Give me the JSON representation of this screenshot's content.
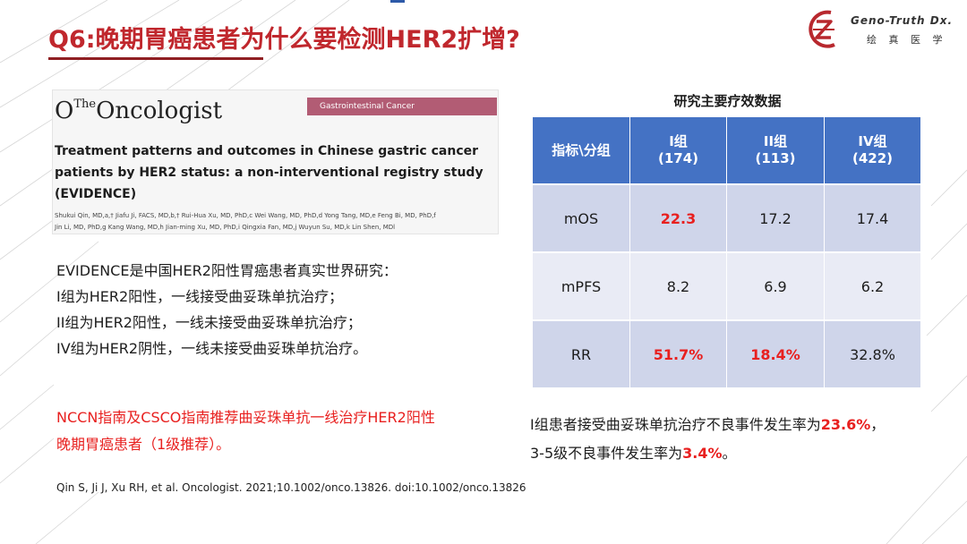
{
  "title": "Q6:晚期胃癌患者为什么要检测HER2扩增?",
  "logo": {
    "name_en": "Geno-Truth Dx.",
    "name_cn": "绘 真 医 学"
  },
  "paper": {
    "journal": "The Oncologist",
    "journal_prefix": "The",
    "journal_name": "Oncologist",
    "category": "Gastrointestinal Cancer",
    "title": "Treatment patterns and outcomes in Chinese gastric cancer patients by HER2 status: a non-interventional registry study (EVIDENCE)",
    "authors_line1": "Shukui Qin, MD,a,† Jiafu Ji, FACS, MD,b,† Rui-Hua Xu, MD, PhD,c Wei Wang, MD, PhD,d Yong Tang, MD,e Feng Bi, MD, PhD,f",
    "authors_line2": "Jin Li, MD, PhD,g Kang Wang, MD,h Jian-ming Xu, MD, PhD,i Qingxia Fan, MD,j Wuyun Su, MD,k Lin Shen, MDl"
  },
  "evidence": {
    "line1": "EVIDENCE是中国HER2阳性胃癌患者真实世界研究：",
    "line2": "I组为HER2阳性，一线接受曲妥珠单抗治疗；",
    "line3": "II组为HER2阳性，一线未接受曲妥珠单抗治疗；",
    "line4": "IV组为HER2阴性，一线未接受曲妥珠单抗治疗。"
  },
  "nccn": {
    "line1": "NCCN指南及CSCO指南推荐曲妥珠单抗一线治疗HER2阳性",
    "line2": "晚期胃癌患者（1级推荐）。"
  },
  "citation": "Qin S, Ji J, Xu RH, et al. Oncologist. 2021;10.1002/onco.13826. doi:10.1002/onco.13826",
  "table": {
    "title": "研究主要疗效数据",
    "header": {
      "corner": "指标\\分组",
      "g1_name": "I组",
      "g1_n": "(174)",
      "g2_name": "II组",
      "g2_n": "(113)",
      "g3_name": "IV组",
      "g3_n": "(422)"
    },
    "rows": [
      {
        "metric": "mOS",
        "g1": "22.3",
        "g2": "17.2",
        "g3": "17.4"
      },
      {
        "metric": "mPFS",
        "g1": "8.2",
        "g2": "6.9",
        "g3": "6.2"
      },
      {
        "metric": "RR",
        "g1": "51.7%",
        "g2": "18.4%",
        "g3": "32.8%"
      }
    ],
    "highlight_color": "#e8201f",
    "header_color": "#4472c4"
  },
  "adverse": {
    "line1_text": "I组患者接受曲妥珠单抗治疗不良事件发生率为",
    "line1_value": "23.6%",
    "line1_end": "，",
    "line2_text": "3-5级不良事件发生率为",
    "line2_value": "3.4%",
    "line2_end": "。"
  },
  "colors": {
    "title_red": "#c0272d",
    "accent_red": "#e8201f",
    "brand_red": "#b8282e"
  }
}
